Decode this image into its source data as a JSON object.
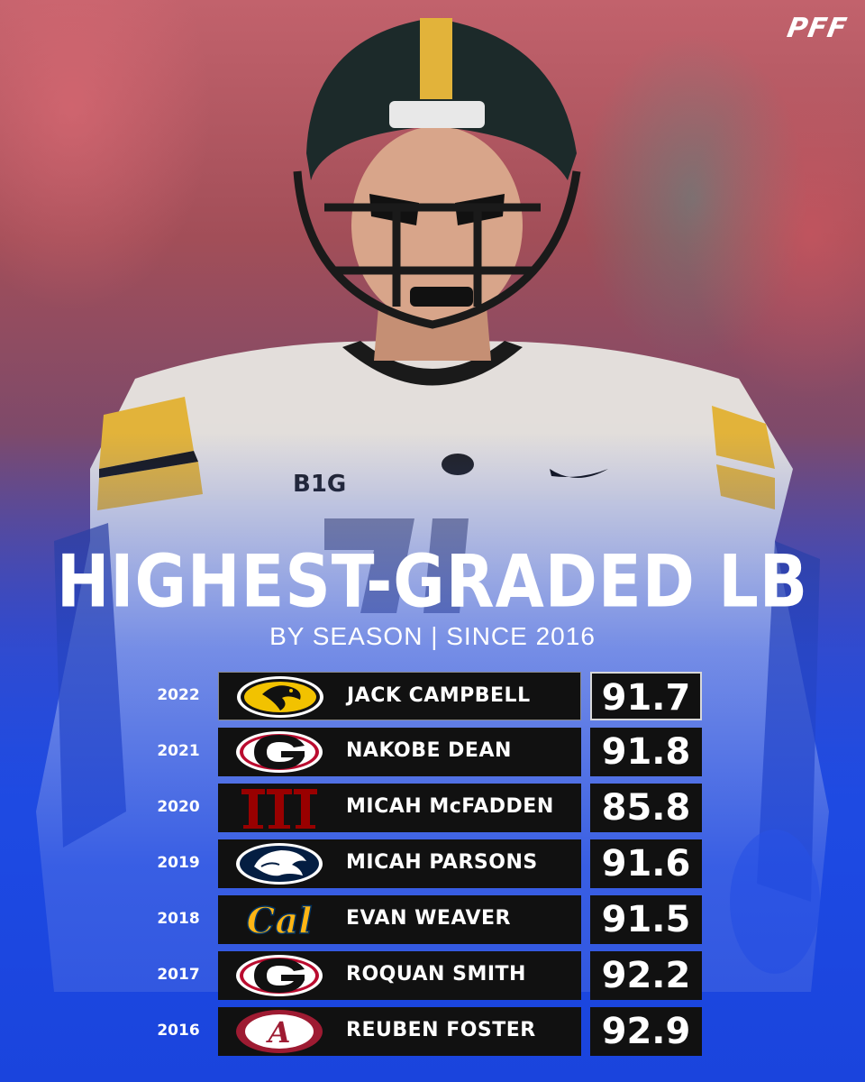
{
  "brand": {
    "logo_text": "PFF"
  },
  "header": {
    "title": "HIGHEST-GRADED LB",
    "subtitle": "BY SEASON | SINCE 2016"
  },
  "colors": {
    "background_top": "#a24e58",
    "background_bottom": "#1d47d2",
    "row_box": "#111111",
    "text": "#ffffff"
  },
  "rows": [
    {
      "year": "2022",
      "team_icon": "iowa-hawkeye-icon",
      "name": "JACK CAMPBELL",
      "grade": "91.7"
    },
    {
      "year": "2021",
      "team_icon": "georgia-g-icon",
      "name": "NAKOBE DEAN",
      "grade": "91.8"
    },
    {
      "year": "2020",
      "team_icon": "indiana-iu-icon",
      "name": "MICAH McFADDEN",
      "grade": "85.8"
    },
    {
      "year": "2019",
      "team_icon": "penn-state-lion-icon",
      "name": "MICAH PARSONS",
      "grade": "91.6"
    },
    {
      "year": "2018",
      "team_icon": "cal-script-icon",
      "name": "EVAN WEAVER",
      "grade": "91.5"
    },
    {
      "year": "2017",
      "team_icon": "georgia-g-icon",
      "name": "ROQUAN SMITH",
      "grade": "92.2"
    },
    {
      "year": "2016",
      "team_icon": "alabama-script-a-icon",
      "name": "REUBEN FOSTER",
      "grade": "92.9"
    }
  ]
}
